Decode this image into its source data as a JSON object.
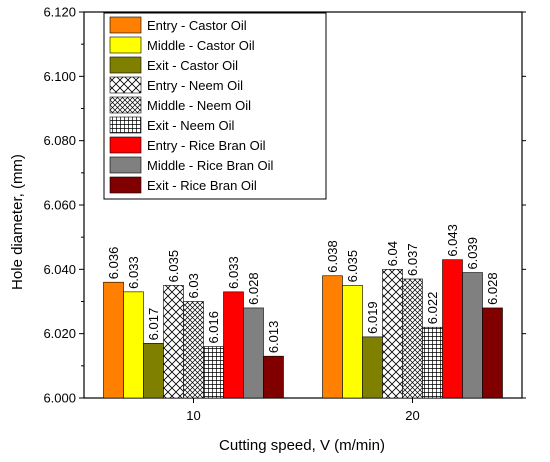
{
  "chart_data": {
    "type": "bar",
    "title": "",
    "xlabel": "Cutting speed, V (m/min)",
    "ylabel": "Hole diameter, (mm)",
    "ylim": [
      6.0,
      6.12
    ],
    "yticks": [
      "6.000",
      "6.020",
      "6.040",
      "6.060",
      "6.080",
      "6.100",
      "6.120"
    ],
    "categories": [
      "10",
      "20"
    ],
    "legend_position": "top-center",
    "grid": false,
    "series": [
      {
        "name": "Entry - Castor Oil",
        "color": "#ff8000",
        "pattern": "solid",
        "values": [
          6.036,
          6.038
        ],
        "labels": [
          "6.036",
          "6.038"
        ]
      },
      {
        "name": "Middle - Castor Oil",
        "color": "#ffff00",
        "pattern": "solid",
        "values": [
          6.033,
          6.035
        ],
        "labels": [
          "6.033",
          "6.035"
        ]
      },
      {
        "name": "Exit - Castor Oil",
        "color": "#808000",
        "pattern": "solid",
        "values": [
          6.017,
          6.019
        ],
        "labels": [
          "6.017",
          "6.019"
        ]
      },
      {
        "name": "Entry - Neem Oil",
        "color": "#ffffff",
        "pattern": "diag-sparse",
        "values": [
          6.035,
          6.04
        ],
        "labels": [
          "6.035",
          "6.04"
        ]
      },
      {
        "name": "Middle - Neem Oil",
        "color": "#ffffff",
        "pattern": "diag-dense",
        "values": [
          6.03,
          6.037
        ],
        "labels": [
          "6.03",
          "6.037"
        ]
      },
      {
        "name": "Exit - Neem Oil",
        "color": "#ffffff",
        "pattern": "grid",
        "values": [
          6.016,
          6.022
        ],
        "labels": [
          "6.016",
          "6.022"
        ]
      },
      {
        "name": "Entry - Rice Bran Oil",
        "color": "#ff0000",
        "pattern": "solid",
        "values": [
          6.033,
          6.043
        ],
        "labels": [
          "6.033",
          "6.043"
        ]
      },
      {
        "name": "Middle - Rice Bran Oil",
        "color": "#808080",
        "pattern": "solid",
        "values": [
          6.028,
          6.039
        ],
        "labels": [
          "6.028",
          "6.039"
        ]
      },
      {
        "name": "Exit - Rice Bran Oil",
        "color": "#800000",
        "pattern": "solid",
        "values": [
          6.013,
          6.028
        ],
        "labels": [
          "6.013",
          "6.028"
        ]
      }
    ]
  }
}
